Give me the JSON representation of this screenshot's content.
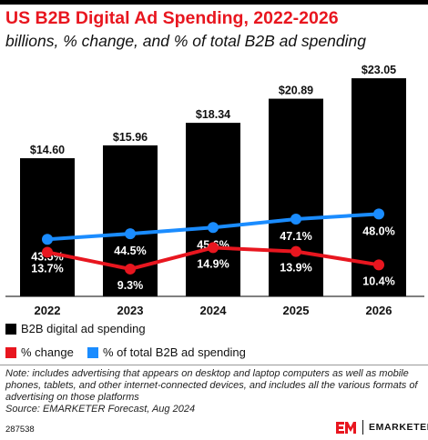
{
  "header": {
    "title": "US B2B Digital Ad Spending, 2022-2026",
    "subtitle": "billions, % change, and % of total B2B ad spending"
  },
  "chart_data": {
    "type": "bar",
    "categories": [
      "2022",
      "2023",
      "2024",
      "2025",
      "2026"
    ],
    "series": [
      {
        "name": "B2B digital ad spending",
        "type": "bar",
        "values": [
          14.6,
          15.96,
          18.34,
          20.89,
          23.05
        ],
        "labels": [
          "$14.60",
          "$15.96",
          "$18.34",
          "$20.89",
          "$23.05"
        ],
        "color": "#000000"
      },
      {
        "name": "% change",
        "type": "line",
        "values": [
          13.7,
          9.3,
          14.9,
          13.9,
          10.4
        ],
        "labels": [
          "13.7%",
          "9.3%",
          "14.9%",
          "13.9%",
          "10.4%"
        ],
        "color": "#e8161f"
      },
      {
        "name": "% of total B2B ad spending",
        "type": "line",
        "values": [
          43.5,
          44.5,
          45.6,
          47.1,
          48.0
        ],
        "labels": [
          "43.5%",
          "44.5%",
          "45.6%",
          "47.1%",
          "48.0%"
        ],
        "color": "#1a8cff"
      }
    ],
    "ylim": [
      0,
      24.5
    ],
    "grid": false,
    "legend": "bottom"
  },
  "note": "Note: includes advertising that appears on desktop and laptop computers as well as mobile phones, tablets, and other internet-connected devices, and includes all the various formats of advertising on those platforms",
  "source": "Source: EMARKETER Forecast, Aug 2024",
  "chart_id": "287538",
  "brand": {
    "logo_text": "EM",
    "name": "EMARKETER",
    "color": "#e8161f"
  }
}
